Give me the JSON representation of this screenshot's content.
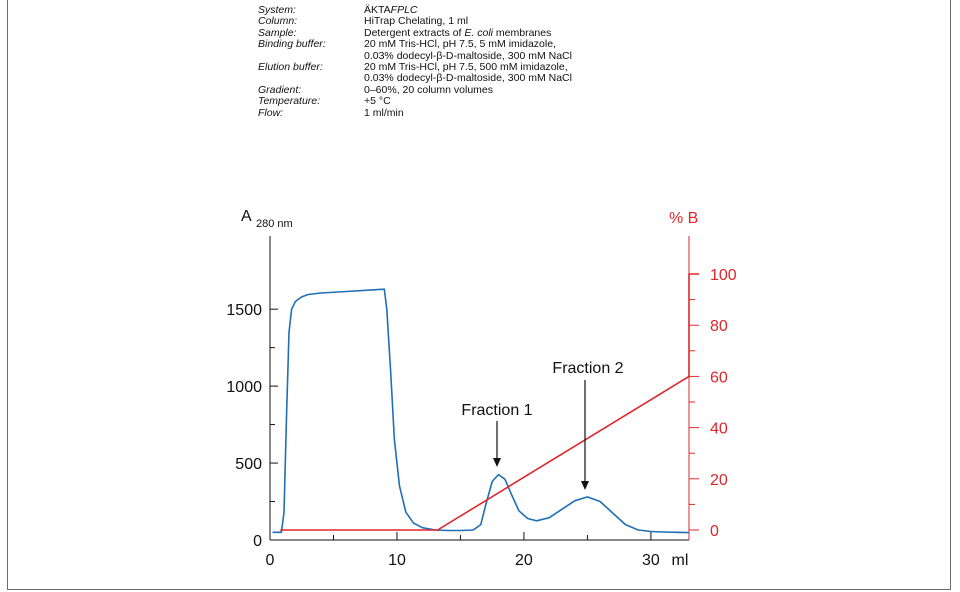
{
  "info": {
    "rows": [
      {
        "key": "System:",
        "val": [
          "ÄKTA",
          "FPLC"
        ],
        "val_italic": [
          false,
          true
        ]
      },
      {
        "key": "Column:",
        "val": [
          "HiTrap Chelating, 1 ml"
        ],
        "val_italic": [
          false
        ]
      },
      {
        "key": "Sample:",
        "val": [
          "Detergent extracts of ",
          "E. coli",
          " membranes"
        ],
        "val_italic": [
          false,
          true,
          false
        ]
      },
      {
        "key": "Binding buffer:",
        "val": [
          "20 mM Tris-HCl, pH 7.5, 5 mM imidazole,"
        ],
        "val_italic": [
          false
        ]
      },
      {
        "key": "",
        "val": [
          "0.03% dodecyl-β-D-maltoside, 300 mM NaCl"
        ],
        "val_italic": [
          false
        ]
      },
      {
        "key": "Elution buffer:",
        "val": [
          "20 mM Tris-HCl, pH 7.5, 500 mM imidazole,"
        ],
        "val_italic": [
          false
        ]
      },
      {
        "key": "",
        "val": [
          "0.03% dodecyl-β-D-maltoside, 300 mM NaCl"
        ],
        "val_italic": [
          false
        ]
      },
      {
        "key": "Gradient:",
        "val": [
          "0–60%, 20 column volumes"
        ],
        "val_italic": [
          false
        ]
      },
      {
        "key": "Temperature:",
        "val": [
          "+5 °C"
        ],
        "val_italic": [
          false
        ]
      },
      {
        "key": "Flow:",
        "val": [
          "1 ml/min"
        ],
        "val_italic": [
          false
        ]
      }
    ]
  },
  "chart_data": {
    "type": "line",
    "x_unit": "ml",
    "xlim": [
      0,
      33
    ],
    "x_ticks": [
      0,
      10,
      20,
      30
    ],
    "y_left": {
      "label": "A",
      "label_sub": "280 nm",
      "lim": [
        0,
        1800
      ],
      "ticks": [
        0,
        500,
        1000,
        1500
      ]
    },
    "y_right": {
      "label": "% B",
      "lim": [
        0,
        100
      ],
      "ticks": [
        0,
        20,
        40,
        60,
        80,
        100
      ],
      "color": "#e0262b"
    },
    "series": [
      {
        "axis": "left",
        "color": "#1f6fb5",
        "points": [
          [
            0.2,
            50
          ],
          [
            0.9,
            50
          ],
          [
            1.1,
            180
          ],
          [
            1.3,
            800
          ],
          [
            1.5,
            1350
          ],
          [
            1.7,
            1500
          ],
          [
            2,
            1550
          ],
          [
            2.5,
            1580
          ],
          [
            3,
            1595
          ],
          [
            4,
            1605
          ],
          [
            6,
            1615
          ],
          [
            8,
            1625
          ],
          [
            9,
            1630
          ],
          [
            9.2,
            1500
          ],
          [
            9.5,
            1100
          ],
          [
            9.8,
            650
          ],
          [
            10.2,
            350
          ],
          [
            10.7,
            180
          ],
          [
            11.3,
            110
          ],
          [
            12,
            80
          ],
          [
            13,
            65
          ],
          [
            14,
            62
          ],
          [
            15,
            62
          ],
          [
            16,
            65
          ],
          [
            16.6,
            100
          ],
          [
            17,
            230
          ],
          [
            17.5,
            380
          ],
          [
            18,
            425
          ],
          [
            18.5,
            395
          ],
          [
            19,
            300
          ],
          [
            19.6,
            190
          ],
          [
            20.3,
            140
          ],
          [
            21,
            125
          ],
          [
            22,
            145
          ],
          [
            23,
            200
          ],
          [
            24,
            255
          ],
          [
            25,
            280
          ],
          [
            26,
            250
          ],
          [
            27,
            175
          ],
          [
            28,
            100
          ],
          [
            29,
            65
          ],
          [
            30,
            55
          ],
          [
            31,
            52
          ],
          [
            32,
            50
          ],
          [
            33,
            48
          ]
        ]
      },
      {
        "axis": "right",
        "color": "#e0262b",
        "points": [
          [
            0.8,
            0
          ],
          [
            13.2,
            0
          ],
          [
            33,
            60
          ],
          [
            33,
            100
          ],
          [
            33.8,
            100
          ]
        ]
      }
    ],
    "annotations": [
      {
        "text": "Fraction 1",
        "x": 18,
        "y_data": 425
      },
      {
        "text": "Fraction 2",
        "x": 25,
        "y_data": 280
      }
    ]
  }
}
